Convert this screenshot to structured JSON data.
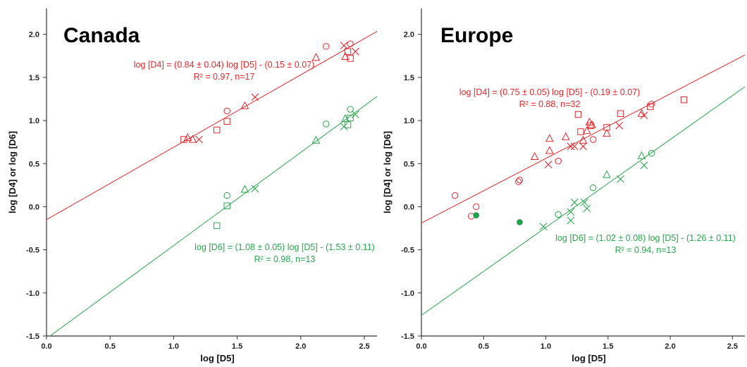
{
  "chart_data": [
    {
      "type": "scatter",
      "title": "Canada",
      "xlabel": "log [D5]",
      "ylabel": "log [D4] or log [D6]",
      "xlim": [
        0,
        2.6
      ],
      "ylim": [
        -1.5,
        2.3
      ],
      "xticks": [
        "0.0",
        "0.5",
        "1.0",
        "1.5",
        "2.0",
        "2.5"
      ],
      "yticks": [
        "-1.5",
        "-1.0",
        "-0.5",
        "0.0",
        "0.5",
        "1.0",
        "1.5",
        "2.0"
      ],
      "grid": false,
      "colors": {
        "d4": "#e8262a",
        "d6": "#27a84a"
      },
      "series": [
        {
          "group": "d4",
          "points": [
            {
              "x": 1.08,
              "y": 0.78,
              "m": "square"
            },
            {
              "x": 1.11,
              "y": 0.8,
              "m": "triangle"
            },
            {
              "x": 1.15,
              "y": 0.78,
              "m": "triangle"
            },
            {
              "x": 1.2,
              "y": 0.78,
              "m": "cross"
            },
            {
              "x": 1.34,
              "y": 0.89,
              "m": "square"
            },
            {
              "x": 1.42,
              "y": 0.99,
              "m": "square"
            },
            {
              "x": 1.42,
              "y": 1.11,
              "m": "circle"
            },
            {
              "x": 1.56,
              "y": 1.17,
              "m": "triangle"
            },
            {
              "x": 1.64,
              "y": 1.27,
              "m": "cross"
            },
            {
              "x": 2.12,
              "y": 1.73,
              "m": "triangle"
            },
            {
              "x": 2.2,
              "y": 1.86,
              "m": "circle"
            },
            {
              "x": 2.34,
              "y": 1.87,
              "m": "cross"
            },
            {
              "x": 2.35,
              "y": 1.74,
              "m": "triangle"
            },
            {
              "x": 2.37,
              "y": 1.8,
              "m": "square"
            },
            {
              "x": 2.39,
              "y": 1.72,
              "m": "square"
            },
            {
              "x": 2.39,
              "y": 1.89,
              "m": "circle"
            },
            {
              "x": 2.43,
              "y": 1.8,
              "m": "cross"
            }
          ]
        },
        {
          "group": "d6",
          "points": [
            {
              "x": 1.34,
              "y": -0.22,
              "m": "square"
            },
            {
              "x": 1.42,
              "y": 0.01,
              "m": "square"
            },
            {
              "x": 1.42,
              "y": 0.13,
              "m": "circle"
            },
            {
              "x": 1.56,
              "y": 0.2,
              "m": "triangle"
            },
            {
              "x": 1.64,
              "y": 0.21,
              "m": "cross"
            },
            {
              "x": 2.12,
              "y": 0.77,
              "m": "triangle"
            },
            {
              "x": 2.2,
              "y": 0.96,
              "m": "circle"
            },
            {
              "x": 2.34,
              "y": 0.93,
              "m": "cross"
            },
            {
              "x": 2.35,
              "y": 1.02,
              "m": "triangle"
            },
            {
              "x": 2.37,
              "y": 0.95,
              "m": "square"
            },
            {
              "x": 2.39,
              "y": 1.03,
              "m": "square"
            },
            {
              "x": 2.39,
              "y": 1.13,
              "m": "circle"
            },
            {
              "x": 2.43,
              "y": 1.07,
              "m": "cross"
            }
          ]
        }
      ],
      "fits": [
        {
          "group": "d4",
          "slope": 0.84,
          "intercept": -0.15
        },
        {
          "group": "d6",
          "slope": 1.08,
          "intercept": -1.53
        }
      ],
      "annotations": [
        {
          "group": "d4",
          "line1": "log [D4] = (0.84 ± 0.04) log [D5] - (0.15 ± 0.07)",
          "line2": "R² = 0.97, n=17"
        },
        {
          "group": "d6",
          "line1": "log [D6] = (1.08 ± 0.05) log [D5] - (1.53 ± 0.11)",
          "line2": "R² = 0.98, n=13"
        }
      ]
    },
    {
      "type": "scatter",
      "title": "Europe",
      "xlabel": "log [D5]",
      "ylabel": "log [D4] or log [D6]",
      "xlim": [
        0,
        2.6
      ],
      "ylim": [
        -1.5,
        2.3
      ],
      "xticks": [
        "0.0",
        "0.5",
        "1.0",
        "1.5",
        "2.0",
        "2.5"
      ],
      "yticks": [
        "-1.5",
        "-1.0",
        "-0.5",
        "0.0",
        "0.5",
        "1.0",
        "1.5",
        "2.0"
      ],
      "grid": false,
      "colors": {
        "d4": "#e8262a",
        "d6": "#27a84a"
      },
      "series": [
        {
          "group": "d4",
          "points": [
            {
              "x": 0.27,
              "y": 0.13,
              "m": "circle"
            },
            {
              "x": 0.4,
              "y": -0.11,
              "m": "circle"
            },
            {
              "x": 0.44,
              "y": 0.0,
              "m": "circle"
            },
            {
              "x": 0.78,
              "y": 0.29,
              "m": "circle"
            },
            {
              "x": 0.79,
              "y": 0.31,
              "m": "circle"
            },
            {
              "x": 0.91,
              "y": 0.58,
              "m": "triangle"
            },
            {
              "x": 1.02,
              "y": 0.49,
              "m": "cross"
            },
            {
              "x": 1.03,
              "y": 0.65,
              "m": "triangle"
            },
            {
              "x": 1.03,
              "y": 0.79,
              "m": "triangle"
            },
            {
              "x": 1.1,
              "y": 0.53,
              "m": "circle"
            },
            {
              "x": 1.16,
              "y": 0.81,
              "m": "triangle"
            },
            {
              "x": 1.2,
              "y": 0.7,
              "m": "cross"
            },
            {
              "x": 1.23,
              "y": 0.7,
              "m": "cross"
            },
            {
              "x": 1.26,
              "y": 1.07,
              "m": "square"
            },
            {
              "x": 1.28,
              "y": 0.87,
              "m": "square"
            },
            {
              "x": 1.3,
              "y": 0.7,
              "m": "cross"
            },
            {
              "x": 1.3,
              "y": 0.77,
              "m": "triangle"
            },
            {
              "x": 1.33,
              "y": 0.88,
              "m": "triangle"
            },
            {
              "x": 1.35,
              "y": 0.98,
              "m": "triangle"
            },
            {
              "x": 1.36,
              "y": 0.94,
              "m": "square"
            },
            {
              "x": 1.37,
              "y": 0.95,
              "m": "triangle"
            },
            {
              "x": 1.38,
              "y": 0.78,
              "m": "circle"
            },
            {
              "x": 1.49,
              "y": 0.92,
              "m": "square"
            },
            {
              "x": 1.49,
              "y": 0.85,
              "m": "triangle"
            },
            {
              "x": 1.59,
              "y": 0.94,
              "m": "cross"
            },
            {
              "x": 1.6,
              "y": 1.08,
              "m": "square"
            },
            {
              "x": 1.77,
              "y": 1.08,
              "m": "triangle"
            },
            {
              "x": 1.79,
              "y": 1.06,
              "m": "cross"
            },
            {
              "x": 1.84,
              "y": 1.16,
              "m": "square"
            },
            {
              "x": 1.85,
              "y": 1.19,
              "m": "circle"
            },
            {
              "x": 2.11,
              "y": 1.24,
              "m": "square"
            },
            {
              "x": 0.44,
              "y": -0.1,
              "m": "dot"
            }
          ]
        },
        {
          "group": "d6",
          "points": [
            {
              "x": 0.44,
              "y": -0.1,
              "m": "dot"
            },
            {
              "x": 0.79,
              "y": -0.18,
              "m": "dot"
            },
            {
              "x": 0.98,
              "y": -0.23,
              "m": "cross"
            },
            {
              "x": 1.1,
              "y": -0.09,
              "m": "circle"
            },
            {
              "x": 1.2,
              "y": -0.06,
              "m": "cross"
            },
            {
              "x": 1.2,
              "y": -0.16,
              "m": "cross"
            },
            {
              "x": 1.23,
              "y": 0.05,
              "m": "cross"
            },
            {
              "x": 1.31,
              "y": 0.05,
              "m": "cross"
            },
            {
              "x": 1.33,
              "y": -0.02,
              "m": "cross"
            },
            {
              "x": 1.38,
              "y": 0.22,
              "m": "circle"
            },
            {
              "x": 1.49,
              "y": 0.37,
              "m": "triangle"
            },
            {
              "x": 1.6,
              "y": 0.32,
              "m": "cross"
            },
            {
              "x": 1.77,
              "y": 0.59,
              "m": "triangle"
            },
            {
              "x": 1.79,
              "y": 0.48,
              "m": "cross"
            },
            {
              "x": 1.85,
              "y": 0.62,
              "m": "circle"
            }
          ]
        }
      ],
      "fits": [
        {
          "group": "d4",
          "slope": 0.75,
          "intercept": -0.19
        },
        {
          "group": "d6",
          "slope": 1.02,
          "intercept": -1.26
        }
      ],
      "annotations": [
        {
          "group": "d4",
          "line1": "log [D4] = (0.75 ± 0.05) log [D5] - (0.19 ± 0.07)",
          "line2": "R² = 0.88, n=32"
        },
        {
          "group": "d6",
          "line1": "log [D6] = (1.02 ± 0.08)  log [D5] - (1.26 ± 0.11)",
          "line2": "R² = 0.94, n=13"
        }
      ]
    }
  ]
}
